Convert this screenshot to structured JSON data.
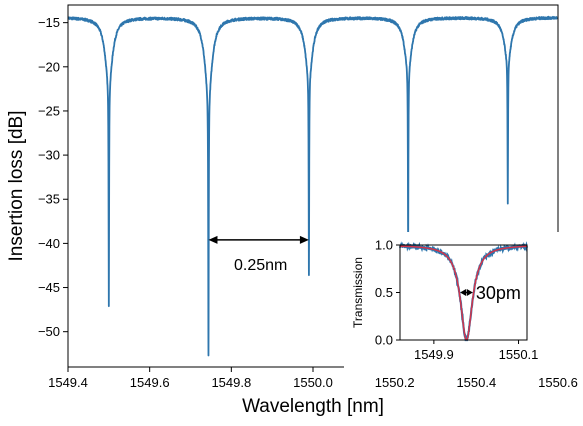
{
  "chart_data": [
    {
      "type": "line",
      "xlabel": "Wavelength [nm]",
      "ylabel": "Insertion loss [dB]",
      "xlim": [
        1549.4,
        1550.6
      ],
      "ylim": [
        -54,
        -13
      ],
      "x_ticks": [
        1549.4,
        1549.6,
        1549.8,
        1550.0,
        1550.2,
        1550.4,
        1550.6
      ],
      "x_tick_labels": [
        "1549.4",
        "1549.6",
        "1549.8",
        "1550.0",
        "1550.2",
        "1550.4",
        "1550.6"
      ],
      "y_ticks": [
        -15,
        -20,
        -25,
        -30,
        -35,
        -40,
        -45,
        -50
      ],
      "y_tick_labels": [
        "−15",
        "−20",
        "−25",
        "−30",
        "−35",
        "−40",
        "−45",
        "−50"
      ],
      "grid": false,
      "baseline": -14.4,
      "resonances": [
        {
          "x": 1549.5,
          "min": -47.0
        },
        {
          "x": 1549.744,
          "min": -52.7
        },
        {
          "x": 1549.99,
          "min": -43.6
        },
        {
          "x": 1550.233,
          "min": -40.0
        },
        {
          "x": 1550.477,
          "min": -35.5
        }
      ],
      "series": [
        {
          "color": "#2e76ad"
        }
      ],
      "annotation": {
        "text": "0.25nm",
        "x_start": 1549.744,
        "x_end": 1549.99,
        "y": -39.6
      }
    },
    {
      "type": "line",
      "ylabel": "Transmission",
      "xlim": [
        1549.82,
        1550.12
      ],
      "ylim": [
        0.0,
        1.0
      ],
      "x_ticks": [
        1549.9,
        1550.1
      ],
      "x_tick_labels": [
        "1549.9",
        "1550.1"
      ],
      "y_ticks": [
        0.0,
        0.5,
        1.0
      ],
      "y_tick_labels": [
        "0.0",
        "0.5",
        "1.0"
      ],
      "resonance_center": 1549.977,
      "series": [
        {
          "color": "#2e76ad"
        },
        {
          "color": "#d1344b"
        }
      ],
      "annotation": {
        "text": "30pm",
        "x_start": 1549.962,
        "x_end": 1549.992,
        "y": 0.5
      }
    }
  ]
}
